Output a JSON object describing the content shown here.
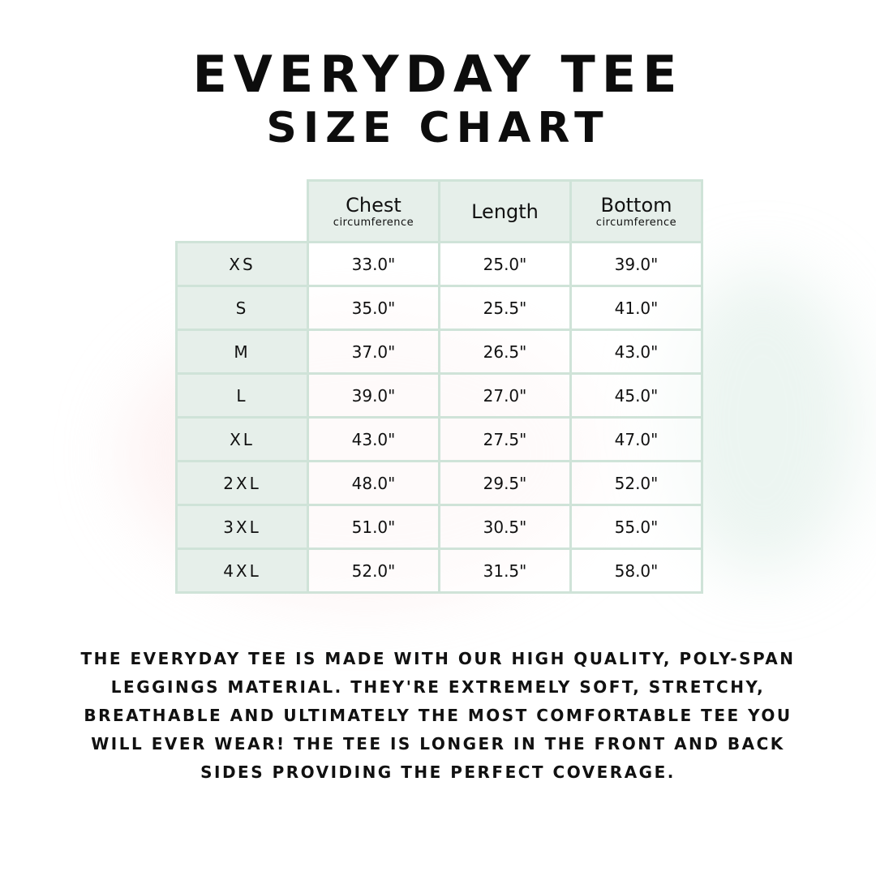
{
  "title": {
    "line1": "EVERYDAY TEE",
    "line2": "SIZE CHART"
  },
  "table": {
    "headers": [
      {
        "main": "Chest",
        "sub": "circumference"
      },
      {
        "main": "Length",
        "sub": ""
      },
      {
        "main": "Bottom",
        "sub": "circumference"
      }
    ],
    "rows": [
      {
        "size": "XS",
        "chest": "33.0\"",
        "length": "25.0\"",
        "bottom": "39.0\""
      },
      {
        "size": "S",
        "chest": "35.0\"",
        "length": "25.5\"",
        "bottom": "41.0\""
      },
      {
        "size": "M",
        "chest": "37.0\"",
        "length": "26.5\"",
        "bottom": "43.0\""
      },
      {
        "size": "L",
        "chest": "39.0\"",
        "length": "27.0\"",
        "bottom": "45.0\""
      },
      {
        "size": "XL",
        "chest": "43.0\"",
        "length": "27.5\"",
        "bottom": "47.0\""
      },
      {
        "size": "2XL",
        "chest": "48.0\"",
        "length": "29.5\"",
        "bottom": "52.0\""
      },
      {
        "size": "3XL",
        "chest": "51.0\"",
        "length": "30.5\"",
        "bottom": "55.0\""
      },
      {
        "size": "4XL",
        "chest": "52.0\"",
        "length": "31.5\"",
        "bottom": "58.0\""
      }
    ]
  },
  "description": "The everyday tee is made with our high quality, poly-span leggings material. They're extremely soft, stretchy, breathable and ultimately the most comfortable tee you will ever wear! The tee is longer in the front and back sides providing the perfect coverage.",
  "colors": {
    "header_bg": "#e6efea",
    "border": "#cfe3d8"
  }
}
